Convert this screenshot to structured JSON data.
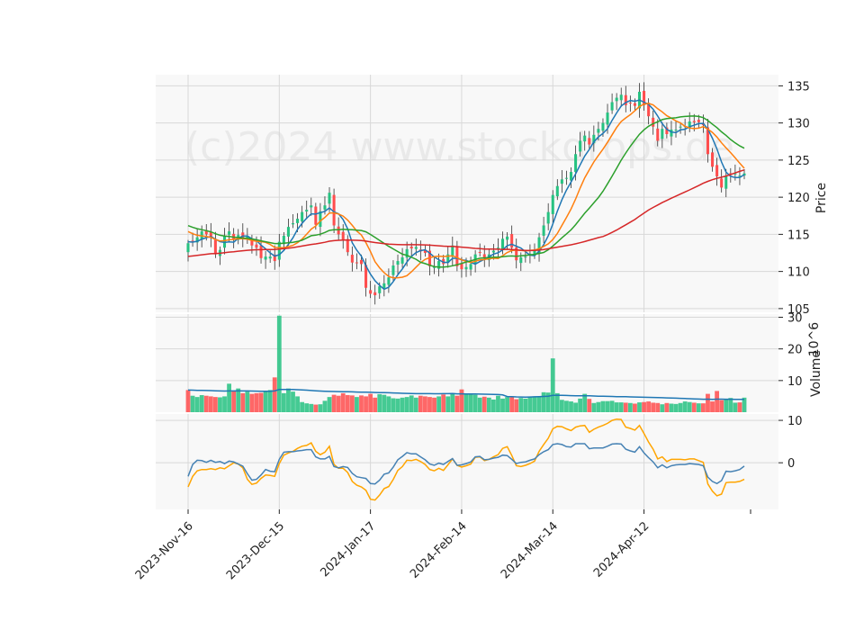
{
  "chart_data": {
    "type": "candlestick",
    "watermark": "(c)2024 www.stockdrops.de",
    "colors": {
      "up": "#26c281",
      "down": "#ff4d4d",
      "panel_bg": "#f8f8f8",
      "grid": "#d8d8d8",
      "ma_short": "#1f77b4",
      "ma_mid": "#ff7f0e",
      "ma_long": "#2ca02c",
      "ma_longest": "#d62728",
      "volume_ma": "#1f77b4",
      "osc_a": "#4682b4",
      "osc_b": "#ffa500"
    },
    "x_ticks": [
      {
        "label": "2023-Nov-16",
        "index": 0
      },
      {
        "label": "2023-Dec-15",
        "index": 20
      },
      {
        "label": "2024-Jan-17",
        "index": 40
      },
      {
        "label": "2024-Feb-14",
        "index": 60
      },
      {
        "label": "2024-Mar-14",
        "index": 80
      },
      {
        "label": "2024-Apr-12",
        "index": 100
      }
    ],
    "price_panel": {
      "ylabel": "Price",
      "ylim": [
        104.5,
        136.5
      ],
      "yticks": [
        105,
        110,
        115,
        120,
        125,
        130,
        135
      ]
    },
    "volume_panel": {
      "ylabel": "Volume",
      "multiplier": "10^6",
      "ylim": [
        0,
        31
      ],
      "yticks": [
        10,
        20,
        30
      ]
    },
    "oscillator_panel": {
      "ylim": [
        -11,
        11.5
      ],
      "yticks": [
        0,
        10
      ]
    },
    "close": [
      113.8,
      114.0,
      114.6,
      115.4,
      115.0,
      114.5,
      112.3,
      112.9,
      114.8,
      115.4,
      114.3,
      114.9,
      114.5,
      114.8,
      113.5,
      113.2,
      111.8,
      112.0,
      112.0,
      111.4,
      114.0,
      114.8,
      116.0,
      116.5,
      117.1,
      118.0,
      118.3,
      118.9,
      116.3,
      118.1,
      118.9,
      120.6,
      116.2,
      115.0,
      114.3,
      112.6,
      111.2,
      111.2,
      111.0,
      107.8,
      107.0,
      106.8,
      108.0,
      108.4,
      109.2,
      110.8,
      111.4,
      111.9,
      113.0,
      113.1,
      113.3,
      112.7,
      112.5,
      110.7,
      110.6,
      111.4,
      111.0,
      112.3,
      113.5,
      110.7,
      110.3,
      110.6,
      111.0,
      112.3,
      112.5,
      111.8,
      112.3,
      112.8,
      113.2,
      114.4,
      114.7,
      113.2,
      111.5,
      111.9,
      112.0,
      112.4,
      112.8,
      114.6,
      116.2,
      118.0,
      120.3,
      121.5,
      122.4,
      122.6,
      123.4,
      125.8,
      127.6,
      128.3,
      127.1,
      128.4,
      129.2,
      130.0,
      131.4,
      132.8,
      133.4,
      133.8,
      132.4,
      132.7,
      132.3,
      134.2,
      132.4,
      130.9,
      129.5,
      127.6,
      129.2,
      128.5,
      129.1,
      129.1,
      129.5,
      129.6,
      130.2,
      130.1,
      130.1,
      129.7,
      125.8,
      124.1,
      122.8,
      121.3,
      122.9,
      123.0,
      123.2,
      122.9,
      123.2
    ],
    "volume": [
      7.0,
      5.2,
      4.8,
      5.4,
      5.2,
      5.0,
      4.8,
      4.7,
      5.0,
      9.0,
      6.8,
      7.5,
      6.0,
      6.5,
      5.8,
      6.0,
      6.1,
      6.5,
      7.0,
      11.0,
      30.5,
      6.0,
      7.5,
      6.5,
      5.0,
      3.2,
      2.8,
      2.6,
      2.4,
      2.5,
      3.6,
      4.8,
      5.5,
      5.2,
      6.0,
      5.4,
      5.3,
      4.8,
      5.3,
      5.0,
      5.8,
      4.6,
      5.7,
      5.5,
      5.0,
      4.4,
      4.3,
      4.6,
      4.8,
      5.3,
      4.6,
      5.2,
      5.0,
      4.8,
      4.6,
      5.0,
      5.6,
      5.0,
      6.0,
      5.2,
      7.2,
      5.6,
      5.8,
      5.5,
      4.6,
      4.9,
      4.6,
      4.0,
      5.2,
      4.3,
      4.8,
      4.7,
      4.1,
      4.5,
      4.3,
      4.7,
      5.0,
      5.0,
      6.3,
      6.2,
      17.0,
      6.0,
      3.9,
      3.6,
      3.4,
      3.0,
      4.3,
      5.8,
      4.2,
      2.9,
      3.2,
      3.5,
      3.5,
      3.6,
      3.1,
      3.1,
      3.0,
      2.9,
      2.7,
      3.1,
      3.2,
      3.4,
      3.0,
      2.9,
      2.5,
      2.9,
      2.7,
      2.6,
      2.9,
      3.4,
      3.2,
      3.0,
      2.8,
      2.8,
      5.8,
      3.4,
      6.7,
      3.8,
      4.0,
      4.5,
      3.0,
      3.1,
      4.6
    ],
    "osc_a": [
      -3.2,
      -0.4,
      0.6,
      0.5,
      0.1,
      0.6,
      0.1,
      0.3,
      -0.2,
      0.4,
      0.2,
      -0.3,
      -0.8,
      -2.6,
      -4.1,
      -3.9,
      -2.9,
      -1.6,
      -2.0,
      -2.1,
      0.8,
      2.5,
      2.6,
      2.6,
      2.8,
      2.9,
      3.1,
      3.1,
      1.4,
      0.9,
      0.9,
      1.5,
      -0.9,
      -1.2,
      -0.9,
      -1.1,
      -2.5,
      -3.3,
      -3.5,
      -3.7,
      -4.9,
      -5.0,
      -4.1,
      -2.7,
      -2.4,
      -1.0,
      0.7,
      1.5,
      2.4,
      2.1,
      2.1,
      1.4,
      0.7,
      -0.3,
      -0.6,
      -0.1,
      -0.4,
      0.3,
      1.0,
      -0.6,
      -0.5,
      -0.2,
      0.2,
      1.4,
      1.5,
      0.7,
      0.8,
      1.1,
      1.3,
      1.8,
      1.7,
      0.8,
      -0.2,
      0.1,
      0.2,
      0.6,
      0.9,
      1.9,
      2.6,
      3.1,
      4.3,
      4.5,
      4.3,
      3.8,
      3.7,
      4.5,
      4.5,
      4.5,
      3.3,
      3.5,
      3.5,
      3.5,
      3.9,
      4.4,
      4.5,
      4.4,
      3.2,
      2.8,
      2.5,
      3.8,
      2.3,
      1.2,
      0.2,
      -1.2,
      -0.5,
      -1.2,
      -0.7,
      -0.5,
      -0.4,
      -0.4,
      -0.2,
      -0.3,
      -0.4,
      -0.7,
      -3.4,
      -4.4,
      -4.9,
      -4.2,
      -2.0,
      -2.1,
      -1.9,
      -1.6,
      -0.8
    ],
    "osc_b": [
      -5.7,
      -3.2,
      -1.9,
      -1.6,
      -1.6,
      -1.4,
      -1.6,
      -1.2,
      -1.4,
      -0.7,
      0.0,
      -0.3,
      -1.2,
      -3.9,
      -5.1,
      -4.8,
      -3.7,
      -2.9,
      -3.0,
      -3.2,
      -0.2,
      1.8,
      2.3,
      2.7,
      3.4,
      3.9,
      4.1,
      4.7,
      2.7,
      1.9,
      2.5,
      3.9,
      -0.4,
      -1.3,
      -1.3,
      -2.3,
      -4.4,
      -5.3,
      -5.7,
      -6.5,
      -8.6,
      -8.8,
      -7.6,
      -6.1,
      -5.6,
      -3.9,
      -1.8,
      -0.9,
      0.6,
      0.5,
      0.8,
      0.3,
      -0.4,
      -1.6,
      -1.9,
      -1.3,
      -1.8,
      -0.5,
      0.9,
      -0.6,
      -1.0,
      -0.7,
      -0.3,
      1.3,
      1.4,
      0.5,
      0.8,
      1.4,
      1.9,
      3.4,
      3.8,
      1.7,
      -0.7,
      -0.9,
      -0.6,
      -0.2,
      0.4,
      2.7,
      4.3,
      5.8,
      8.0,
      8.6,
      8.5,
      8.0,
      7.6,
      8.4,
      8.7,
      8.8,
      7.2,
      7.9,
      8.4,
      8.8,
      9.3,
      10.0,
      10.3,
      10.2,
      8.4,
      8.1,
      7.7,
      8.8,
      6.9,
      4.9,
      3.2,
      0.9,
      1.4,
      0.3,
      0.8,
      0.8,
      0.8,
      0.7,
      0.9,
      0.9,
      0.5,
      0.1,
      -5.0,
      -6.7,
      -7.8,
      -7.4,
      -4.7,
      -4.6,
      -4.6,
      -4.4,
      -3.9
    ]
  }
}
